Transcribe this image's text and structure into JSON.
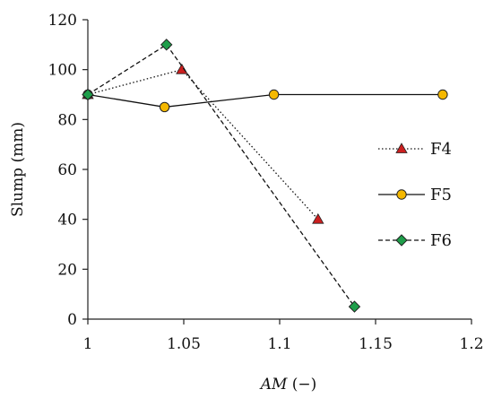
{
  "chart_data": {
    "type": "line",
    "xlabel_italic": "AM",
    "xlabel_rest": " (−)",
    "ylabel": "Slump (mm)",
    "xlim": [
      1,
      1.2
    ],
    "ylim": [
      0,
      120
    ],
    "x_ticks": [
      "1",
      "1.05",
      "1.1",
      "1.15",
      "1.2"
    ],
    "y_ticks": [
      "0",
      "20",
      "40",
      "60",
      "80",
      "100",
      "120"
    ],
    "grid": false,
    "legend_position": "right",
    "series": [
      {
        "name": "F4",
        "line_style": "dotted",
        "marker": "triangle",
        "marker_color": "#cc1f1f",
        "x": [
          1.0,
          1.049,
          1.12
        ],
        "y": [
          90,
          100,
          40
        ]
      },
      {
        "name": "F5",
        "line_style": "solid",
        "marker": "circle",
        "marker_color": "#f5b800",
        "x": [
          1.0,
          1.04,
          1.097,
          1.185
        ],
        "y": [
          90,
          85,
          90,
          90
        ]
      },
      {
        "name": "F6",
        "line_style": "dashed",
        "marker": "diamond",
        "marker_color": "#1e9e4a",
        "x": [
          1.0,
          1.041,
          1.139
        ],
        "y": [
          90,
          110,
          5
        ]
      }
    ]
  }
}
